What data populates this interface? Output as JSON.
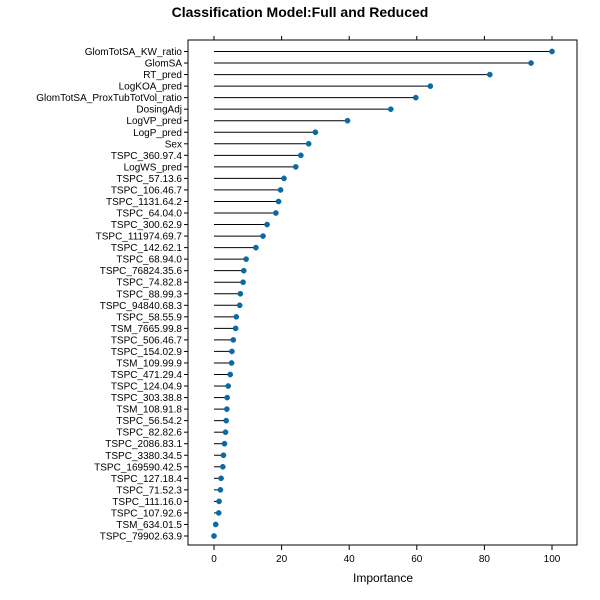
{
  "chart_data": {
    "type": "lollipop",
    "title": "Classification Model:Full and Reduced",
    "xlabel": "Importance",
    "ylabel": "",
    "xlim": [
      0,
      100
    ],
    "xticks": [
      0,
      20,
      40,
      60,
      80,
      100
    ],
    "grid": false,
    "legend": "none",
    "colors": {
      "point": "#0b6aa2",
      "line": "#000000",
      "axis": "#000000",
      "background": "#ffffff"
    },
    "categories": [
      "GlomTotSA_KW_ratio",
      "GlomSA",
      "RT_pred",
      "LogKOA_pred",
      "GlomTotSA_ProxTubTotVol_ratio",
      "DosingAdj",
      "LogVP_pred",
      "LogP_pred",
      "Sex",
      "TSPC_360.97.4",
      "LogWS_pred",
      "TSPC_57.13.6",
      "TSPC_106.46.7",
      "TSPC_1131.64.2",
      "TSPC_64.04.0",
      "TSPC_300.62.9",
      "TSPC_111974.69.7",
      "TSPC_142.62.1",
      "TSPC_68.94.0",
      "TSPC_76824.35.6",
      "TSPC_74.82.8",
      "TSPC_88.99.3",
      "TSPC_94840.68.3",
      "TSPC_58.55.9",
      "TSM_7665.99.8",
      "TSPC_506.46.7",
      "TSPC_154.02.9",
      "TSM_109.99.9",
      "TSPC_471.29.4",
      "TSPC_124.04.9",
      "TSPC_303.38.8",
      "TSM_108.91.8",
      "TSPC_56.54.2",
      "TSPC_82.82.6",
      "TSPC_2086.83.1",
      "TSPC_3380.34.5",
      "TSPC_169590.42.5",
      "TSPC_127.18.4",
      "TSPC_71.52.3",
      "TSPC_111.16.0",
      "TSPC_107.92.6",
      "TSM_634.01.5",
      "TSPC_79902.63.9"
    ],
    "values": [
      100.0,
      93.8,
      81.6,
      64.0,
      59.7,
      52.3,
      39.5,
      30.0,
      28.0,
      25.7,
      24.2,
      20.7,
      19.7,
      19.1,
      18.3,
      15.7,
      14.5,
      12.4,
      9.5,
      8.8,
      8.6,
      7.8,
      7.6,
      6.6,
      6.4,
      5.7,
      5.3,
      5.2,
      4.8,
      4.2,
      3.9,
      3.8,
      3.6,
      3.4,
      3.1,
      2.8,
      2.6,
      2.1,
      1.9,
      1.5,
      1.4,
      0.5,
      0.0
    ]
  }
}
